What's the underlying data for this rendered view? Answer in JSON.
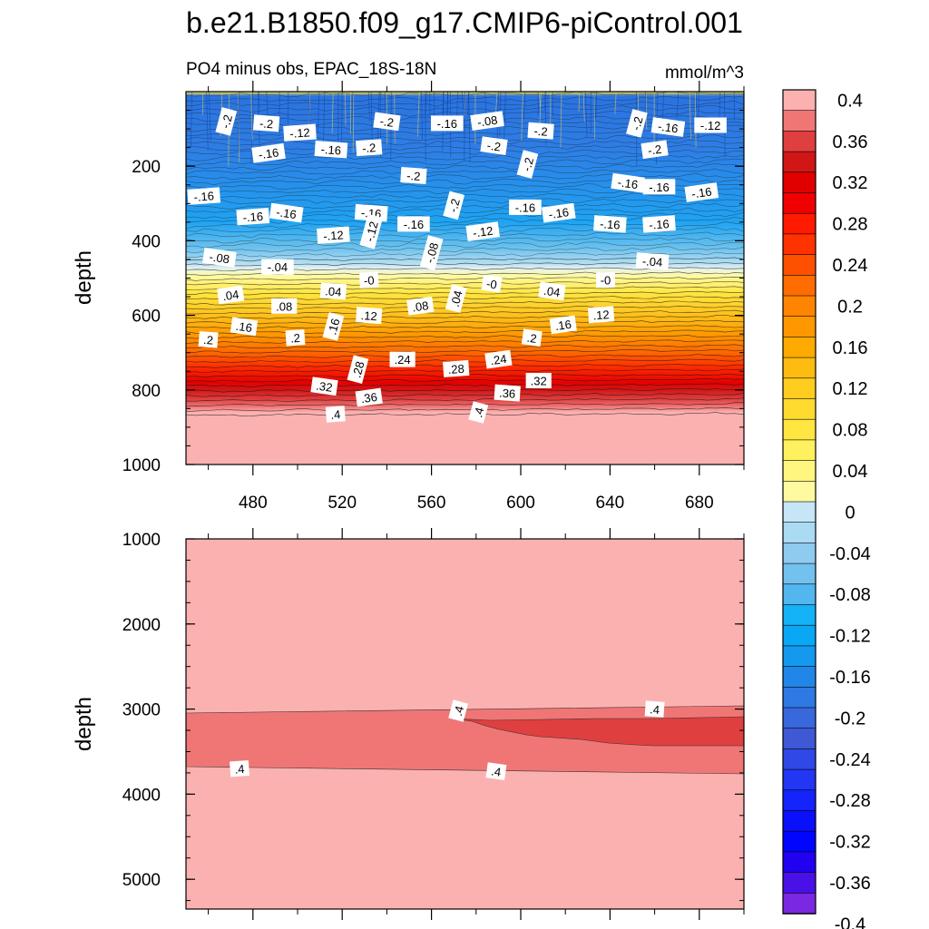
{
  "chart_data": {
    "type": "contour",
    "title": "b.e21.B1850.f09_g17.CMIP6-piControl.001",
    "panels": [
      {
        "subtitle_left": "PO4 minus obs, EPAC_18S-18N",
        "subtitle_right": "mmol/m^3",
        "ylabel": "depth",
        "xlim": [
          450,
          700
        ],
        "ylim": [
          0,
          1000
        ],
        "y_inverted": true,
        "x_ticks": [
          480,
          520,
          560,
          600,
          640,
          680
        ],
        "x_tick_labels": [
          "480",
          "520",
          "560",
          "600",
          "640",
          "680"
        ],
        "y_ticks": [
          200,
          400,
          600,
          800,
          1000
        ],
        "y_tick_labels": [
          "200",
          "400",
          "600",
          "800",
          "1000"
        ],
        "contour_labels": [
          {
            "text": "-.2",
            "x": 468,
            "y": 80
          },
          {
            "text": "-.2",
            "x": 486,
            "y": 85
          },
          {
            "text": "-.12",
            "x": 501,
            "y": 110
          },
          {
            "text": "-.2",
            "x": 540,
            "y": 80
          },
          {
            "text": "-.16",
            "x": 567,
            "y": 85
          },
          {
            "text": "-.08",
            "x": 585,
            "y": 78
          },
          {
            "text": "-.2",
            "x": 609,
            "y": 105
          },
          {
            "text": "-.2",
            "x": 652,
            "y": 85
          },
          {
            "text": "-.16",
            "x": 666,
            "y": 95
          },
          {
            "text": "-.12",
            "x": 685,
            "y": 90
          },
          {
            "text": "-.16",
            "x": 487,
            "y": 165
          },
          {
            "text": "-.16",
            "x": 515,
            "y": 155
          },
          {
            "text": "-.2",
            "x": 532,
            "y": 150
          },
          {
            "text": "-.2",
            "x": 588,
            "y": 145
          },
          {
            "text": "-.2",
            "x": 603,
            "y": 195
          },
          {
            "text": "-.2",
            "x": 660,
            "y": 155
          },
          {
            "text": "-.2",
            "x": 552,
            "y": 225
          },
          {
            "text": "-.16",
            "x": 458,
            "y": 280
          },
          {
            "text": "-.16",
            "x": 648,
            "y": 245
          },
          {
            "text": "-.16",
            "x": 662,
            "y": 255
          },
          {
            "text": "-.16",
            "x": 681,
            "y": 270
          },
          {
            "text": "-.2",
            "x": 570,
            "y": 305
          },
          {
            "text": "-.16",
            "x": 480,
            "y": 335
          },
          {
            "text": "-.16",
            "x": 495,
            "y": 325
          },
          {
            "text": "-.16",
            "x": 602,
            "y": 310
          },
          {
            "text": "-.16",
            "x": 617,
            "y": 325
          },
          {
            "text": "-.16",
            "x": 533,
            "y": 325
          },
          {
            "text": "-.12",
            "x": 516,
            "y": 385
          },
          {
            "text": "-.12",
            "x": 533,
            "y": 375
          },
          {
            "text": "-.16",
            "x": 552,
            "y": 355
          },
          {
            "text": "-.12",
            "x": 583,
            "y": 375
          },
          {
            "text": "-.16",
            "x": 640,
            "y": 355
          },
          {
            "text": "-.16",
            "x": 662,
            "y": 355
          },
          {
            "text": "-.08",
            "x": 465,
            "y": 445
          },
          {
            "text": "-.04",
            "x": 491,
            "y": 470
          },
          {
            "text": "-.08",
            "x": 560,
            "y": 432
          },
          {
            "text": "-.04",
            "x": 659,
            "y": 455
          },
          {
            "text": "-0",
            "x": 532,
            "y": 505
          },
          {
            "text": "-0",
            "x": 587,
            "y": 515
          },
          {
            "text": "-0",
            "x": 638,
            "y": 505
          },
          {
            "text": ".04",
            "x": 470,
            "y": 545
          },
          {
            "text": ".04",
            "x": 516,
            "y": 535
          },
          {
            "text": ".04",
            "x": 571,
            "y": 555
          },
          {
            "text": ".04",
            "x": 614,
            "y": 535
          },
          {
            "text": ".08",
            "x": 494,
            "y": 575
          },
          {
            "text": ".08",
            "x": 555,
            "y": 575
          },
          {
            "text": ".12",
            "x": 532,
            "y": 600
          },
          {
            "text": ".12",
            "x": 636,
            "y": 598
          },
          {
            "text": ".16",
            "x": 476,
            "y": 630
          },
          {
            "text": ".16",
            "x": 516,
            "y": 630
          },
          {
            "text": ".16",
            "x": 619,
            "y": 625
          },
          {
            "text": ".2",
            "x": 460,
            "y": 665
          },
          {
            "text": ".2",
            "x": 499,
            "y": 660
          },
          {
            "text": ".2",
            "x": 605,
            "y": 660
          },
          {
            "text": ".24",
            "x": 547,
            "y": 718
          },
          {
            "text": ".24",
            "x": 590,
            "y": 718
          },
          {
            "text": ".28",
            "x": 527,
            "y": 745
          },
          {
            "text": ".28",
            "x": 571,
            "y": 743
          },
          {
            "text": ".32",
            "x": 512,
            "y": 790
          },
          {
            "text": ".32",
            "x": 608,
            "y": 775
          },
          {
            "text": ".36",
            "x": 532,
            "y": 820
          },
          {
            "text": ".36",
            "x": 594,
            "y": 808
          },
          {
            "text": ".4",
            "x": 517,
            "y": 865
          },
          {
            "text": ".4",
            "x": 581,
            "y": 860
          }
        ]
      },
      {
        "ylabel": "depth",
        "xlim": [
          450,
          700
        ],
        "ylim": [
          1000,
          5350
        ],
        "y_inverted": true,
        "y_ticks": [
          1000,
          2000,
          3000,
          4000,
          5000
        ],
        "y_tick_labels": [
          "1000",
          "2000",
          "3000",
          "4000",
          "5000"
        ],
        "x_ticks": [
          480,
          520,
          560,
          600,
          640,
          680
        ],
        "contour_labels": [
          {
            "text": ".4",
            "x": 572,
            "y": 3020
          },
          {
            "text": ".4",
            "x": 660,
            "y": 3000
          },
          {
            "text": ".4",
            "x": 474,
            "y": 3700
          },
          {
            "text": ".4",
            "x": 589,
            "y": 3730
          }
        ]
      }
    ],
    "colorbar": {
      "levels": [
        -0.4,
        -0.38,
        -0.36,
        -0.34,
        -0.32,
        -0.3,
        -0.28,
        -0.26,
        -0.24,
        -0.22,
        -0.2,
        -0.18,
        -0.16,
        -0.14,
        -0.12,
        -0.1,
        -0.08,
        -0.06,
        -0.04,
        -0.02,
        0,
        0.02,
        0.04,
        0.06,
        0.08,
        0.1,
        0.12,
        0.14,
        0.16,
        0.18,
        0.2,
        0.22,
        0.24,
        0.26,
        0.28,
        0.3,
        0.32,
        0.34,
        0.36,
        0.38,
        0.4
      ],
      "labels": [
        "0.4",
        "0.36",
        "0.32",
        "0.28",
        "0.24",
        "0.2",
        "0.16",
        "0.12",
        "0.08",
        "0.04",
        "0",
        "-0.04",
        "-0.08",
        "-0.12",
        "-0.16",
        "-0.2",
        "-0.24",
        "-0.28",
        "-0.32",
        "-0.36",
        "-0.4"
      ],
      "label_values": [
        0.4,
        0.36,
        0.32,
        0.28,
        0.24,
        0.2,
        0.16,
        0.12,
        0.08,
        0.04,
        0,
        -0.04,
        -0.08,
        -0.12,
        -0.16,
        -0.2,
        -0.24,
        -0.28,
        -0.32,
        -0.36,
        -0.4
      ],
      "colors_top_to_bottom": [
        "#fcb1b1",
        "#f07676",
        "#e03f3f",
        "#d11616",
        "#e00000",
        "#f00000",
        "#ff1a00",
        "#ff3300",
        "#ff5000",
        "#ff6c00",
        "#ff8500",
        "#ff9800",
        "#ffaa00",
        "#ffbc10",
        "#ffcc20",
        "#ffdb30",
        "#ffe640",
        "#fff060",
        "#fff680",
        "#fffaa0",
        "#c6e6f7",
        "#aadbf3",
        "#8fcbef",
        "#72c1ee",
        "#52b6ef",
        "#14b2f6",
        "#0aa7f5",
        "#1499ee",
        "#2087e8",
        "#2e79e3",
        "#3868dc",
        "#3f58d4",
        "#3048e6",
        "#2236f4",
        "#1424fa",
        "#0a10fc",
        "#0006fe",
        "#2200f0",
        "#4a10e8",
        "#7a28e2"
      ]
    }
  }
}
